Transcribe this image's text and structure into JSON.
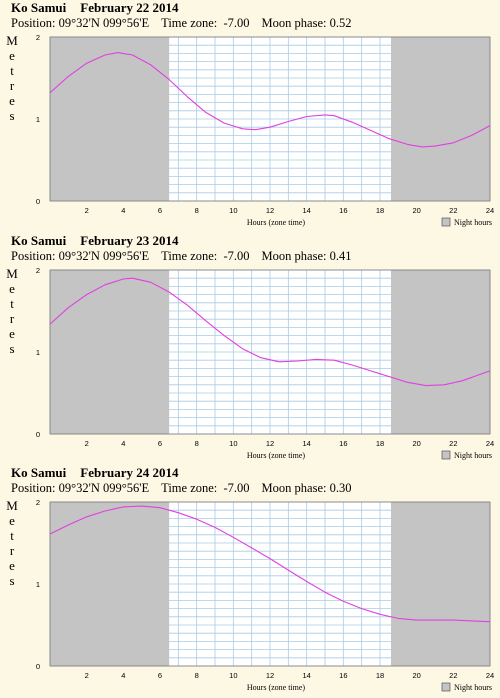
{
  "colors": {
    "background": "#fdf8e4",
    "night": "#c4c4c4",
    "day": "#ffffff",
    "grid": "#a9cbe6",
    "curve": "#e040e0"
  },
  "chart_data": [
    {
      "type": "line",
      "location": "Ko Samui",
      "date": "February 22 2014",
      "position_label": "Position: 09°32'N 099°56'E",
      "timezone_label": "Time zone:  -7.00",
      "moonphase_label": "Moon phase: 0.52",
      "ylabel": "Metres",
      "xlabel": "Hours (zone time)",
      "xlim": [
        0,
        24
      ],
      "ylim": [
        0,
        2
      ],
      "xticks": [
        "2",
        "4",
        "6",
        "8",
        "10",
        "12",
        "14",
        "16",
        "18",
        "20",
        "22",
        "24"
      ],
      "yticks": [
        "0",
        "1",
        "2"
      ],
      "night_hours": [
        [
          0,
          6.5
        ],
        [
          18.6,
          24
        ]
      ],
      "legend": "Night hours",
      "series": [
        {
          "x": [
            0,
            1,
            2,
            3,
            3.7,
            4.5,
            5.5,
            6.5,
            7.5,
            8.5,
            9.5,
            10.5,
            11.2,
            12,
            13,
            14,
            15,
            15.5,
            16.5,
            17.5,
            18.5,
            19.5,
            20.3,
            21,
            22,
            23,
            24
          ],
          "values": [
            1.32,
            1.52,
            1.68,
            1.78,
            1.81,
            1.78,
            1.66,
            1.48,
            1.27,
            1.08,
            0.95,
            0.88,
            0.87,
            0.9,
            0.97,
            1.03,
            1.05,
            1.04,
            0.96,
            0.86,
            0.76,
            0.69,
            0.66,
            0.67,
            0.71,
            0.8,
            0.92
          ]
        }
      ]
    },
    {
      "type": "line",
      "location": "Ko Samui",
      "date": "February 23 2014",
      "position_label": "Position: 09°32'N 099°56'E",
      "timezone_label": "Time zone:  -7.00",
      "moonphase_label": "Moon phase: 0.41",
      "ylabel": "Metres",
      "xlabel": "Hours (zone time)",
      "xlim": [
        0,
        24
      ],
      "ylim": [
        0,
        2
      ],
      "xticks": [
        "2",
        "4",
        "6",
        "8",
        "10",
        "12",
        "14",
        "16",
        "18",
        "20",
        "22",
        "24"
      ],
      "yticks": [
        "0",
        "1",
        "2"
      ],
      "night_hours": [
        [
          0,
          6.5
        ],
        [
          18.6,
          24
        ]
      ],
      "legend": "Night hours",
      "series": [
        {
          "x": [
            0,
            1,
            2,
            3,
            4,
            4.5,
            5.5,
            6.5,
            7.5,
            8.5,
            9.5,
            10.5,
            11.5,
            12.5,
            13.5,
            14.5,
            15.5,
            16.5,
            17.5,
            18.5,
            19.5,
            20.5,
            21.5,
            22.5,
            23.5,
            24
          ],
          "values": [
            1.34,
            1.54,
            1.7,
            1.82,
            1.89,
            1.9,
            1.85,
            1.73,
            1.57,
            1.38,
            1.2,
            1.04,
            0.93,
            0.88,
            0.89,
            0.91,
            0.9,
            0.84,
            0.77,
            0.7,
            0.63,
            0.59,
            0.6,
            0.65,
            0.73,
            0.77
          ]
        }
      ]
    },
    {
      "type": "line",
      "location": "Ko Samui",
      "date": "February 24 2014",
      "position_label": "Position: 09°32'N 099°56'E",
      "timezone_label": "Time zone:  -7.00",
      "moonphase_label": "Moon phase: 0.30",
      "ylabel": "Metres",
      "xlabel": "Hours (zone time)",
      "xlim": [
        0,
        24
      ],
      "ylim": [
        0,
        2
      ],
      "xticks": [
        "2",
        "4",
        "6",
        "8",
        "10",
        "12",
        "14",
        "16",
        "18",
        "20",
        "22",
        "24"
      ],
      "yticks": [
        "0",
        "1",
        "2"
      ],
      "night_hours": [
        [
          0,
          6.5
        ],
        [
          18.6,
          24
        ]
      ],
      "legend": "Night hours",
      "series": [
        {
          "x": [
            0,
            1,
            2,
            3,
            4,
            5,
            6,
            7,
            8,
            9,
            10,
            11,
            12,
            13,
            14,
            15,
            16,
            17,
            18,
            19,
            20,
            21,
            22,
            23,
            24
          ],
          "values": [
            1.61,
            1.72,
            1.82,
            1.89,
            1.94,
            1.95,
            1.93,
            1.87,
            1.79,
            1.69,
            1.57,
            1.44,
            1.31,
            1.17,
            1.03,
            0.9,
            0.79,
            0.7,
            0.63,
            0.58,
            0.56,
            0.56,
            0.56,
            0.55,
            0.54
          ]
        }
      ]
    }
  ]
}
